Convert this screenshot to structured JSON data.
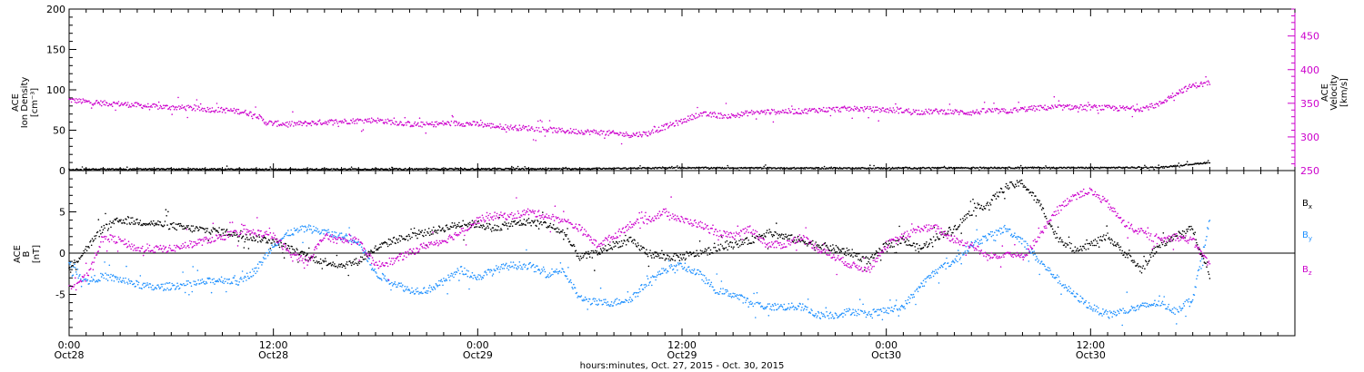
{
  "chart_data": [
    {
      "type": "scatter",
      "panel": "top",
      "ylabel_lines": [
        "ACE",
        "Ion Density"
      ],
      "ylabel_unit": "[cm⁻³]",
      "ylabel2_lines": [
        "ACE",
        "Velocity"
      ],
      "ylabel2_unit": "[km/s]",
      "ylim": [
        0,
        200
      ],
      "yticks": [
        0,
        50,
        100,
        150,
        200
      ],
      "y2lim": [
        250,
        490
      ],
      "y2ticks": [
        250,
        300,
        350,
        400,
        450
      ],
      "series": [
        {
          "axis": "y2",
          "color": "#cc00cc",
          "x": [
            0,
            1,
            2,
            3,
            4,
            5,
            6,
            7,
            8,
            9,
            10,
            11,
            11.5,
            12,
            13,
            14,
            15,
            16,
            17,
            18,
            19,
            20,
            21,
            22,
            23,
            24,
            25,
            26,
            27,
            28,
            29,
            30,
            31,
            32,
            33,
            34,
            35,
            36,
            37,
            38,
            39,
            40,
            41,
            42,
            43,
            44,
            45,
            46,
            47,
            48,
            49,
            50,
            51,
            52,
            53,
            54,
            55,
            56,
            57,
            58,
            59,
            60,
            61,
            62,
            63,
            64,
            65,
            66,
            67
          ],
          "values": [
            355,
            352,
            350,
            349,
            347,
            345,
            344,
            343,
            341,
            340,
            338,
            333,
            322,
            320,
            319,
            320,
            322,
            323,
            324,
            325,
            322,
            319,
            318,
            320,
            320,
            319,
            316,
            314,
            313,
            311,
            309,
            308,
            307,
            305,
            303,
            305,
            315,
            323,
            334,
            332,
            331,
            336,
            337,
            338,
            338,
            340,
            341,
            342,
            341,
            340,
            339,
            337,
            338,
            337,
            336,
            339,
            338,
            341,
            343,
            344,
            344,
            344,
            343,
            342,
            342,
            348,
            365,
            376,
            380
          ]
        },
        {
          "axis": "y",
          "color": "#000000",
          "x": [
            0,
            6,
            12,
            18,
            24,
            30,
            36,
            42,
            48,
            54,
            60,
            64,
            66,
            67
          ],
          "values": [
            1.5,
            1.8,
            1.5,
            1.8,
            2,
            2.2,
            3.5,
            3,
            3,
            3.5,
            3.5,
            3.8,
            8,
            10
          ]
        }
      ]
    },
    {
      "type": "scatter",
      "panel": "bottom",
      "ylabel_lines": [
        "ACE",
        "B"
      ],
      "ylabel_unit": "[nT]",
      "ylim": [
        -10,
        10
      ],
      "yticks": [
        -5,
        0,
        5
      ],
      "legend": [
        "B",
        "B",
        "B"
      ],
      "legend_sub": [
        "x",
        "y",
        "z"
      ],
      "series": [
        {
          "color": "#000000",
          "x": [
            0,
            1,
            2,
            3,
            4,
            5,
            6,
            7,
            8,
            9,
            10,
            11,
            12,
            13,
            14,
            15,
            16,
            17,
            18,
            19,
            20,
            21,
            22,
            23,
            24,
            25,
            26,
            27,
            28,
            29,
            30,
            31,
            32,
            33,
            34,
            35,
            36,
            37,
            38,
            39,
            40,
            41,
            42,
            43,
            44,
            45,
            46,
            47,
            48,
            49,
            50,
            51,
            52,
            53,
            54,
            55,
            56,
            57,
            58,
            59,
            60,
            61,
            62,
            63,
            64,
            65,
            66,
            67
          ],
          "values": [
            -2,
            0.5,
            3,
            4,
            3.8,
            3.6,
            3.3,
            3,
            2.8,
            2.6,
            2.2,
            1.8,
            1.5,
            0.5,
            -0.5,
            -1,
            -1.5,
            -1,
            0.5,
            1.5,
            2,
            2.5,
            3,
            3.5,
            3.5,
            3,
            3.5,
            3.8,
            3.5,
            2.5,
            -0.5,
            0,
            1,
            1.5,
            0,
            -0.5,
            -0.5,
            0,
            0.5,
            1,
            1.5,
            2.5,
            2,
            1.5,
            1,
            0.5,
            0,
            -1,
            1,
            1.5,
            0.5,
            2,
            3,
            5,
            6,
            8,
            8.5,
            6,
            2,
            0.5,
            1,
            2,
            0,
            -2,
            1,
            2,
            3,
            -3
          ]
        },
        {
          "color": "#1e90ff",
          "x": [
            0,
            1,
            2,
            3,
            4,
            5,
            6,
            7,
            8,
            9,
            10,
            11,
            12,
            13,
            14,
            15,
            16,
            17,
            18,
            19,
            20,
            21,
            22,
            23,
            24,
            25,
            26,
            27,
            28,
            29,
            30,
            31,
            32,
            33,
            34,
            35,
            36,
            37,
            38,
            39,
            40,
            41,
            42,
            43,
            44,
            45,
            46,
            47,
            48,
            49,
            50,
            51,
            52,
            53,
            54,
            55,
            56,
            57,
            58,
            59,
            60,
            61,
            62,
            63,
            64,
            65,
            66,
            67
          ],
          "values": [
            -1,
            -3.5,
            -2.8,
            -3.2,
            -3.8,
            -4.2,
            -4,
            -3.8,
            -3.5,
            -3.2,
            -3.5,
            -2,
            1,
            2.5,
            3,
            2.5,
            2,
            1.5,
            -2.5,
            -3.5,
            -4.5,
            -4.5,
            -3.5,
            -2,
            -3,
            -2,
            -1.5,
            -1.5,
            -2.5,
            -2,
            -5.5,
            -6,
            -6,
            -5.5,
            -3.5,
            -2,
            -1.5,
            -2.5,
            -4.5,
            -5,
            -6,
            -6.5,
            -6.5,
            -6.5,
            -7.5,
            -7.5,
            -7,
            -7.5,
            -7,
            -6.5,
            -4,
            -2,
            -1,
            1,
            2,
            3,
            1.5,
            -1,
            -3,
            -5,
            -6.5,
            -7.5,
            -7,
            -6.5,
            -6,
            -7,
            -5.5,
            4
          ]
        },
        {
          "color": "#cc00cc",
          "x": [
            0,
            1,
            2,
            3,
            4,
            5,
            6,
            7,
            8,
            9,
            10,
            11,
            12,
            13,
            14,
            15,
            16,
            17,
            18,
            19,
            20,
            21,
            22,
            23,
            24,
            25,
            26,
            27,
            28,
            29,
            30,
            31,
            32,
            33,
            34,
            35,
            36,
            37,
            38,
            39,
            40,
            41,
            42,
            43,
            44,
            45,
            46,
            47,
            48,
            49,
            50,
            51,
            52,
            53,
            54,
            55,
            56,
            57,
            58,
            59,
            60,
            61,
            62,
            63,
            64,
            65,
            66,
            67
          ],
          "values": [
            -4,
            -3,
            2,
            1.5,
            0.5,
            0.5,
            0.5,
            1,
            1.5,
            2,
            2.5,
            2.5,
            2,
            0,
            -1,
            2,
            1.5,
            1.5,
            -1.5,
            -1,
            0,
            1,
            1.5,
            2.5,
            4,
            4.5,
            4.5,
            5,
            4.5,
            4,
            3,
            1,
            2,
            3.5,
            4,
            5,
            4,
            3.5,
            2.5,
            2,
            3,
            1,
            1,
            2,
            0.5,
            -0.5,
            -1.5,
            -2,
            1,
            2,
            3,
            3,
            1.5,
            1,
            -0.5,
            0,
            -0.5,
            2,
            5,
            7,
            7.5,
            6,
            3.5,
            2.5,
            1.5,
            2,
            1.5,
            -1.5
          ]
        }
      ]
    }
  ],
  "xaxis": {
    "xlim": [
      0,
      72
    ],
    "ticks": [
      {
        "x": 0,
        "time": "0:00",
        "date": "Oct28"
      },
      {
        "x": 12,
        "time": "12:00",
        "date": "Oct28"
      },
      {
        "x": 24,
        "time": "0:00",
        "date": "Oct29"
      },
      {
        "x": 36,
        "time": "12:00",
        "date": "Oct29"
      },
      {
        "x": 48,
        "time": "0:00",
        "date": "Oct30"
      },
      {
        "x": 60,
        "time": "12:00",
        "date": "Oct30"
      }
    ],
    "minor_step": 1,
    "xlabel": "hours:minutes, Oct. 27, 2015 - Oct. 30, 2015"
  }
}
